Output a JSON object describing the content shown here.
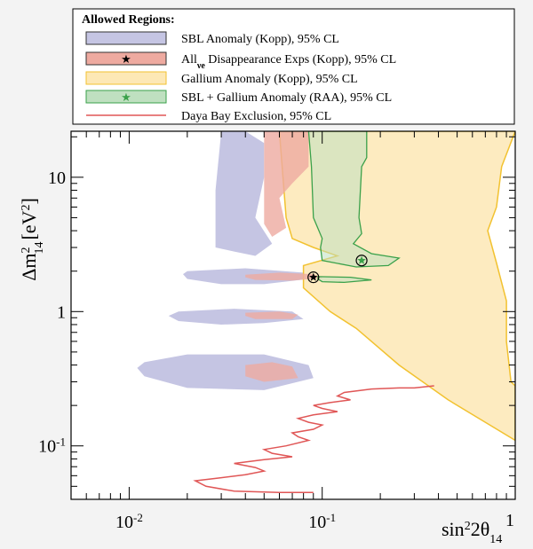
{
  "chart_data": {
    "type": "area",
    "title": "",
    "xlabel_html": {
      "base": "sin",
      "sup": "2",
      "mid": "2θ",
      "sub": "14"
    },
    "ylabel_html": {
      "base": "Δm",
      "sup": "2",
      "sub": "14",
      "unit_open": "[eV",
      "unit_sup": "2",
      "unit_close": "]"
    },
    "x_scale": "log",
    "y_scale": "log",
    "xlim": [
      0.005,
      1.0
    ],
    "ylim": [
      0.04,
      22
    ],
    "x_ticks": [
      {
        "value": 0.01,
        "base": "10",
        "exp": "-2"
      },
      {
        "value": 0.1,
        "base": "10",
        "exp": "-1"
      },
      {
        "value": 1.0,
        "base": "1",
        "exp": ""
      }
    ],
    "y_ticks": [
      {
        "value": 0.1,
        "base": "10",
        "exp": "-1"
      },
      {
        "value": 1,
        "base": "1",
        "exp": ""
      },
      {
        "value": 10,
        "base": "10",
        "exp": ""
      }
    ],
    "legend": {
      "title": "Allowed Regions:",
      "placement": "top",
      "entries": [
        {
          "label": "SBL Anomaly (Kopp), 95% CL",
          "kind": "fill",
          "fill": "#c5c5e3",
          "stroke": "#333333",
          "marker": ""
        },
        {
          "label_pre": "All",
          "label_sub": "νe",
          "label_post": " Disappearance Exps (Kopp), 95% CL",
          "label": "All νe Disappearance Exps (Kopp), 95% CL",
          "kind": "fill",
          "fill": "#eeaaa0",
          "stroke": "#333333",
          "marker": "★",
          "marker_color": "#000000"
        },
        {
          "label": "Gallium Anomaly (Kopp), 95% CL",
          "kind": "fill",
          "fill": "#fde8b5",
          "stroke": "#f2c230",
          "marker": ""
        },
        {
          "label": "SBL + Gallium Anomaly (RAA), 95% CL",
          "kind": "fill",
          "fill": "#bfe0c0",
          "stroke": "#3aa14a",
          "marker": "★",
          "marker_color": "#3aa14a"
        },
        {
          "label": "Daya Bay Exclusion, 95% CL",
          "kind": "line",
          "stroke": "#e05656",
          "marker": ""
        }
      ]
    },
    "colors": {
      "sbl": "#c5c5e3",
      "all_ve": "#eeaaa0",
      "gallium_fill": "#fde8b5",
      "gallium_line": "#f2c230",
      "raa_fill": "#bfe0c0",
      "raa_line": "#3aa14a",
      "daya_bay": "#e05656"
    },
    "series": [
      {
        "id": "sbl",
        "regions": [
          [
            [
              0.03,
              22
            ],
            [
              0.04,
              22
            ],
            [
              0.05,
              18
            ],
            [
              0.05,
              10
            ],
            [
              0.045,
              5
            ],
            [
              0.055,
              3.2
            ],
            [
              0.045,
              2.6
            ],
            [
              0.035,
              2.8
            ],
            [
              0.028,
              3.0
            ],
            [
              0.028,
              8
            ],
            [
              0.03,
              22
            ]
          ],
          [
            [
              0.02,
              2.0
            ],
            [
              0.04,
              2.1
            ],
            [
              0.08,
              1.95
            ],
            [
              0.085,
              1.75
            ],
            [
              0.05,
              1.6
            ],
            [
              0.03,
              1.6
            ],
            [
              0.02,
              1.75
            ],
            [
              0.019,
              1.9
            ],
            [
              0.02,
              2.0
            ]
          ],
          [
            [
              0.018,
              1.0
            ],
            [
              0.035,
              1.05
            ],
            [
              0.07,
              1.0
            ],
            [
              0.08,
              0.88
            ],
            [
              0.05,
              0.82
            ],
            [
              0.03,
              0.8
            ],
            [
              0.018,
              0.85
            ],
            [
              0.016,
              0.93
            ],
            [
              0.018,
              1.0
            ]
          ],
          [
            [
              0.012,
              0.42
            ],
            [
              0.02,
              0.48
            ],
            [
              0.05,
              0.48
            ],
            [
              0.085,
              0.4
            ],
            [
              0.09,
              0.32
            ],
            [
              0.05,
              0.26
            ],
            [
              0.02,
              0.27
            ],
            [
              0.012,
              0.33
            ],
            [
              0.011,
              0.38
            ],
            [
              0.012,
              0.42
            ]
          ]
        ]
      },
      {
        "id": "all_ve",
        "regions": [
          [
            [
              0.05,
              22
            ],
            [
              0.085,
              22
            ],
            [
              0.085,
              12
            ],
            [
              0.07,
              9
            ],
            [
              0.06,
              7
            ],
            [
              0.065,
              4.2
            ],
            [
              0.055,
              3.6
            ],
            [
              0.05,
              4.5
            ],
            [
              0.05,
              10
            ],
            [
              0.05,
              22
            ]
          ],
          [
            [
              0.04,
              1.88
            ],
            [
              0.06,
              1.95
            ],
            [
              0.09,
              1.9
            ],
            [
              0.1,
              1.78
            ],
            [
              0.07,
              1.7
            ],
            [
              0.045,
              1.72
            ],
            [
              0.04,
              1.8
            ],
            [
              0.04,
              1.88
            ]
          ],
          [
            [
              0.04,
              0.98
            ],
            [
              0.06,
              1.0
            ],
            [
              0.075,
              0.95
            ],
            [
              0.07,
              0.88
            ],
            [
              0.045,
              0.88
            ],
            [
              0.04,
              0.93
            ],
            [
              0.04,
              0.98
            ]
          ],
          [
            [
              0.04,
              0.4
            ],
            [
              0.055,
              0.42
            ],
            [
              0.07,
              0.39
            ],
            [
              0.075,
              0.32
            ],
            [
              0.05,
              0.3
            ],
            [
              0.04,
              0.33
            ],
            [
              0.04,
              0.4
            ]
          ]
        ],
        "best_fit": {
          "x": 0.09,
          "y": 1.8
        }
      },
      {
        "id": "gallium",
        "region": [
          [
            0.06,
            22
          ],
          [
            1.0,
            22
          ],
          [
            0.85,
            12
          ],
          [
            0.8,
            6
          ],
          [
            0.72,
            4
          ],
          [
            0.8,
            2.3
          ],
          [
            0.9,
            1.2
          ],
          [
            0.9,
            0.6
          ],
          [
            0.95,
            0.3
          ],
          [
            1.0,
            0.28
          ],
          [
            1.0,
            0.11
          ],
          [
            0.7,
            0.15
          ],
          [
            0.45,
            0.22
          ],
          [
            0.25,
            0.4
          ],
          [
            0.15,
            0.75
          ],
          [
            0.11,
            1.0
          ],
          [
            0.08,
            1.5
          ],
          [
            0.08,
            2.2
          ],
          [
            0.12,
            2.6
          ],
          [
            0.09,
            3.0
          ],
          [
            0.07,
            3.5
          ],
          [
            0.065,
            5
          ],
          [
            0.06,
            22
          ]
        ]
      },
      {
        "id": "raa",
        "region": [
          [
            0.085,
            22
          ],
          [
            0.17,
            22
          ],
          [
            0.17,
            14
          ],
          [
            0.16,
            12
          ],
          [
            0.155,
            5
          ],
          [
            0.16,
            3.8
          ],
          [
            0.145,
            3.2
          ],
          [
            0.18,
            2.7
          ],
          [
            0.25,
            2.5
          ],
          [
            0.22,
            2.2
          ],
          [
            0.15,
            2.15
          ],
          [
            0.1,
            2.4
          ],
          [
            0.098,
            3
          ],
          [
            0.1,
            3.5
          ],
          [
            0.09,
            5
          ],
          [
            0.088,
            12
          ],
          [
            0.085,
            22
          ]
        ],
        "island": [
          [
            0.095,
            1.82
          ],
          [
            0.14,
            1.8
          ],
          [
            0.18,
            1.72
          ],
          [
            0.13,
            1.65
          ],
          [
            0.1,
            1.67
          ],
          [
            0.095,
            1.75
          ],
          [
            0.095,
            1.82
          ]
        ],
        "best_fit": {
          "x": 0.16,
          "y": 2.4
        }
      },
      {
        "id": "daya_bay",
        "line": [
          [
            0.09,
            0.045
          ],
          [
            0.06,
            0.045
          ],
          [
            0.035,
            0.046
          ],
          [
            0.025,
            0.05
          ],
          [
            0.022,
            0.055
          ],
          [
            0.03,
            0.058
          ],
          [
            0.04,
            0.061
          ],
          [
            0.05,
            0.065
          ],
          [
            0.045,
            0.069
          ],
          [
            0.035,
            0.074
          ],
          [
            0.05,
            0.079
          ],
          [
            0.07,
            0.083
          ],
          [
            0.055,
            0.088
          ],
          [
            0.05,
            0.094
          ],
          [
            0.065,
            0.1
          ],
          [
            0.085,
            0.11
          ],
          [
            0.075,
            0.117
          ],
          [
            0.07,
            0.125
          ],
          [
            0.09,
            0.133
          ],
          [
            0.1,
            0.143
          ],
          [
            0.085,
            0.15
          ],
          [
            0.075,
            0.16
          ],
          [
            0.09,
            0.17
          ],
          [
            0.12,
            0.18
          ],
          [
            0.1,
            0.19
          ],
          [
            0.09,
            0.2
          ],
          [
            0.11,
            0.21
          ],
          [
            0.14,
            0.22
          ],
          [
            0.12,
            0.235
          ],
          [
            0.13,
            0.25
          ],
          [
            0.18,
            0.265
          ],
          [
            0.25,
            0.27
          ],
          [
            0.3,
            0.27
          ],
          [
            0.38,
            0.28
          ]
        ]
      }
    ]
  }
}
